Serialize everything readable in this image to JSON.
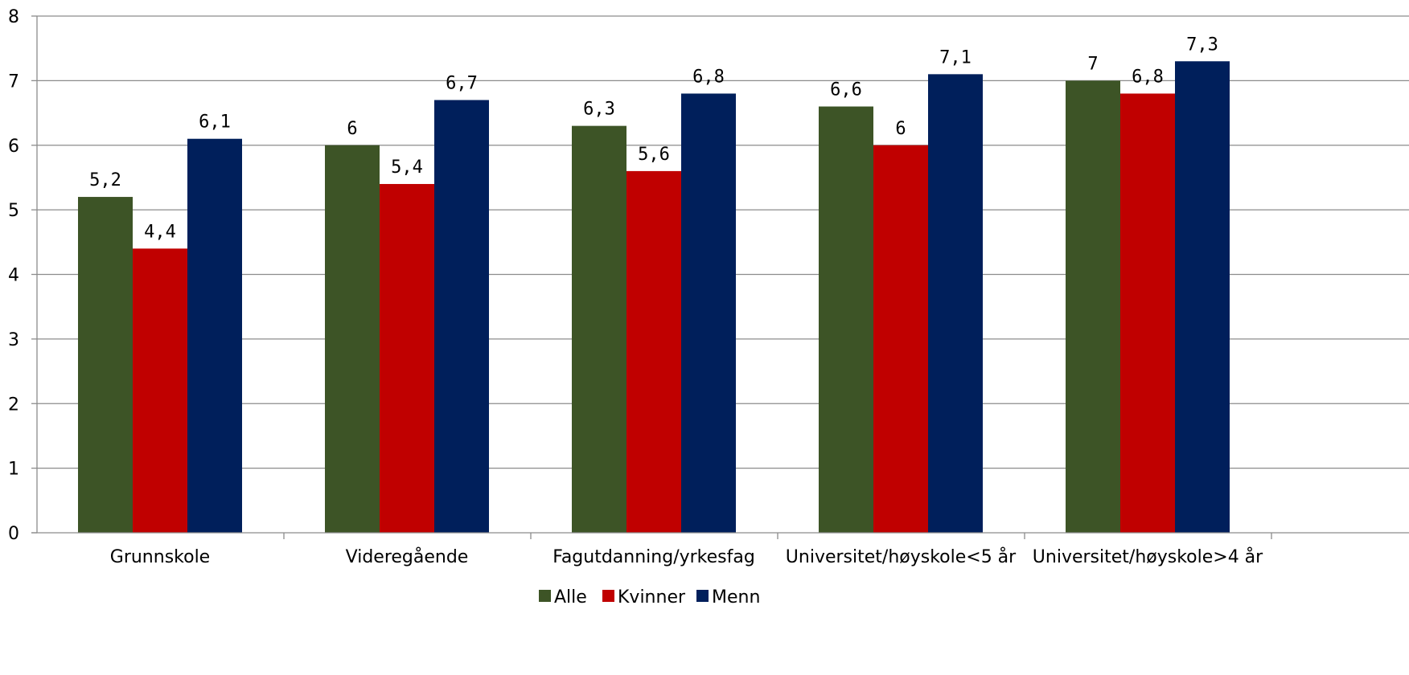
{
  "chart_data": {
    "type": "bar",
    "categories": [
      "Grunnskole",
      "Videregående",
      "Fagutdanning/yrkesfag",
      "Universitet/høyskole<5 år",
      "Universitet/høyskole>4 år"
    ],
    "series": [
      {
        "name": "Alle",
        "color": "#3d5426",
        "values": [
          5.2,
          6,
          6.3,
          6.6,
          7
        ],
        "labels": [
          "5,2",
          "6",
          "6,3",
          "6,6",
          "7"
        ]
      },
      {
        "name": "Kvinner",
        "color": "#c00000",
        "values": [
          4.4,
          5.4,
          5.6,
          6,
          6.8
        ],
        "labels": [
          "4,4",
          "5,4",
          "5,6",
          "6",
          "6,8"
        ]
      },
      {
        "name": "Menn",
        "color": "#001f5b",
        "values": [
          6.1,
          6.7,
          6.8,
          7.1,
          7.3
        ],
        "labels": [
          "6,1",
          "6,7",
          "6,8",
          "7,1",
          "7,3"
        ]
      }
    ],
    "yticks": [
      "0",
      "1",
      "2",
      "3",
      "4",
      "5",
      "6",
      "7",
      "8"
    ],
    "ylim": [
      0,
      8
    ],
    "grid": true,
    "legend_position": "bottom"
  }
}
